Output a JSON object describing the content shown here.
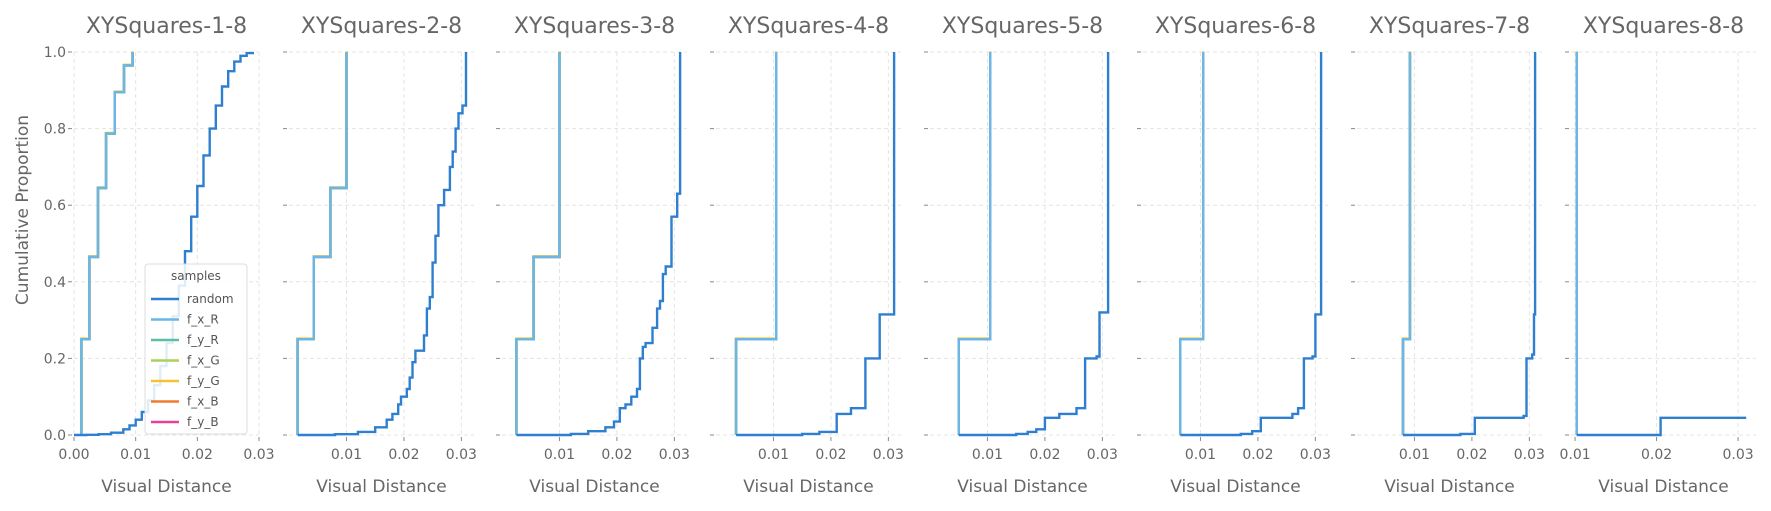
{
  "chart_data": {
    "type": "line",
    "ylabel": "Cumulative Proportion",
    "legend": {
      "title": "samples",
      "placement": "lower-right of first panel",
      "entries": [
        "random",
        "f_x_R",
        "f_y_R",
        "f_x_G",
        "f_y_G",
        "f_x_B",
        "f_y_B"
      ]
    },
    "series_colors": {
      "random": "#2f7fd0",
      "f_x_R": "#6bb6e6",
      "f_y_R": "#5bbfa8",
      "f_x_G": "#a9d15c",
      "f_y_G": "#f5c332",
      "f_x_B": "#f07b30",
      "f_y_B": "#e8409a"
    },
    "grid": true,
    "ylim": [
      0,
      1
    ],
    "y_ticks": [
      0.0,
      0.2,
      0.4,
      0.6,
      0.8,
      1.0
    ],
    "y_tick_labels": [
      "0.0",
      "0.2",
      "0.4",
      "0.6",
      "0.8",
      "1.0"
    ],
    "panels": [
      {
        "title": "XYSquares-1-8",
        "xlabel": "Visual Distance",
        "xlim": [
          0.0,
          0.03
        ],
        "x_ticks": [
          0.0,
          0.01,
          0.02,
          0.03
        ],
        "x_tick_labels": [
          "0.00",
          "0.01",
          "0.02",
          "0.03"
        ],
        "show_y_tick_labels": true,
        "has_legend": true,
        "random": [
          [
            0.0,
            0.0
          ],
          [
            0.002,
            0.0005
          ],
          [
            0.004,
            0.002
          ],
          [
            0.006,
            0.006
          ],
          [
            0.008,
            0.015
          ],
          [
            0.009,
            0.025
          ],
          [
            0.01,
            0.04
          ],
          [
            0.011,
            0.06
          ],
          [
            0.012,
            0.09
          ],
          [
            0.013,
            0.13
          ],
          [
            0.014,
            0.18
          ],
          [
            0.015,
            0.24
          ],
          [
            0.016,
            0.31
          ],
          [
            0.017,
            0.39
          ],
          [
            0.018,
            0.48
          ],
          [
            0.019,
            0.57
          ],
          [
            0.02,
            0.65
          ],
          [
            0.021,
            0.73
          ],
          [
            0.022,
            0.8
          ],
          [
            0.023,
            0.86
          ],
          [
            0.024,
            0.91
          ],
          [
            0.025,
            0.95
          ],
          [
            0.026,
            0.975
          ],
          [
            0.027,
            0.99
          ],
          [
            0.028,
            0.997
          ],
          [
            0.029,
            1.0
          ]
        ],
        "feature_steps": [
          [
            0.0012,
            0.25
          ],
          [
            0.0025,
            0.465
          ],
          [
            0.0039,
            0.645
          ],
          [
            0.0052,
            0.787
          ],
          [
            0.0066,
            0.895
          ],
          [
            0.0081,
            0.965
          ],
          [
            0.0095,
            1.0
          ]
        ],
        "feature_start_x": 0.0012
      },
      {
        "title": "XYSquares-2-8",
        "xlabel": "Visual Distance",
        "xlim": [
          0.0,
          0.0322
        ],
        "x_ticks": [
          0.01,
          0.02,
          0.03
        ],
        "x_tick_labels": [
          "0.01",
          "0.02",
          "0.03"
        ],
        "show_y_tick_labels": false,
        "has_legend": false,
        "random": [
          [
            0.0015,
            0.0
          ],
          [
            0.008,
            0.002
          ],
          [
            0.012,
            0.008
          ],
          [
            0.015,
            0.02
          ],
          [
            0.017,
            0.04
          ],
          [
            0.018,
            0.055
          ],
          [
            0.019,
            0.08
          ],
          [
            0.0195,
            0.1
          ],
          [
            0.0205,
            0.12
          ],
          [
            0.021,
            0.15
          ],
          [
            0.0215,
            0.19
          ],
          [
            0.022,
            0.22
          ],
          [
            0.0235,
            0.26
          ],
          [
            0.024,
            0.33
          ],
          [
            0.0245,
            0.36
          ],
          [
            0.025,
            0.45
          ],
          [
            0.0255,
            0.52
          ],
          [
            0.026,
            0.6
          ],
          [
            0.027,
            0.64
          ],
          [
            0.028,
            0.7
          ],
          [
            0.0285,
            0.74
          ],
          [
            0.029,
            0.8
          ],
          [
            0.0295,
            0.84
          ],
          [
            0.0302,
            0.86
          ],
          [
            0.0308,
            1.0
          ]
        ],
        "feature_steps": [
          [
            0.0015,
            0.25
          ],
          [
            0.0043,
            0.465
          ],
          [
            0.0072,
            0.645
          ],
          [
            0.01,
            1.0
          ]
        ],
        "feature_start_x": 0.0015
      },
      {
        "title": "XYSquares-3-8",
        "xlabel": "Visual Distance",
        "xlim": [
          0.0,
          0.0322
        ],
        "x_ticks": [
          0.01,
          0.02,
          0.03
        ],
        "x_tick_labels": [
          "0.01",
          "0.02",
          "0.03"
        ],
        "show_y_tick_labels": false,
        "has_legend": false,
        "random": [
          [
            0.0025,
            0.0
          ],
          [
            0.012,
            0.003
          ],
          [
            0.015,
            0.01
          ],
          [
            0.018,
            0.02
          ],
          [
            0.0195,
            0.035
          ],
          [
            0.0205,
            0.07
          ],
          [
            0.0215,
            0.08
          ],
          [
            0.0225,
            0.1
          ],
          [
            0.0235,
            0.12
          ],
          [
            0.024,
            0.2
          ],
          [
            0.0245,
            0.23
          ],
          [
            0.025,
            0.24
          ],
          [
            0.0262,
            0.28
          ],
          [
            0.027,
            0.33
          ],
          [
            0.0275,
            0.35
          ],
          [
            0.028,
            0.42
          ],
          [
            0.0285,
            0.44
          ],
          [
            0.0295,
            0.57
          ],
          [
            0.0305,
            0.63
          ],
          [
            0.031,
            1.0
          ]
        ],
        "feature_steps": [
          [
            0.0025,
            0.25
          ],
          [
            0.0055,
            0.465
          ],
          [
            0.01,
            1.0
          ]
        ],
        "feature_start_x": 0.0025
      },
      {
        "title": "XYSquares-4-8",
        "xlabel": "Visual Distance",
        "xlim": [
          0.0,
          0.0322
        ],
        "x_ticks": [
          0.01,
          0.02,
          0.03
        ],
        "x_tick_labels": [
          "0.01",
          "0.02",
          "0.03"
        ],
        "show_y_tick_labels": false,
        "has_legend": false,
        "random": [
          [
            0.0035,
            0.0
          ],
          [
            0.015,
            0.003
          ],
          [
            0.018,
            0.008
          ],
          [
            0.021,
            0.055
          ],
          [
            0.0235,
            0.07
          ],
          [
            0.026,
            0.2
          ],
          [
            0.0285,
            0.315
          ],
          [
            0.031,
            1.0
          ]
        ],
        "feature_steps": [
          [
            0.0035,
            0.25
          ],
          [
            0.0105,
            1.0
          ]
        ],
        "feature_start_x": 0.0035
      },
      {
        "title": "XYSquares-5-8",
        "xlabel": "Visual Distance",
        "xlim": [
          0.0,
          0.0322
        ],
        "x_ticks": [
          0.01,
          0.02,
          0.03
        ],
        "x_tick_labels": [
          "0.01",
          "0.02",
          "0.03"
        ],
        "show_y_tick_labels": false,
        "has_legend": false,
        "random": [
          [
            0.005,
            0.0
          ],
          [
            0.015,
            0.003
          ],
          [
            0.017,
            0.008
          ],
          [
            0.0185,
            0.015
          ],
          [
            0.02,
            0.045
          ],
          [
            0.0225,
            0.055
          ],
          [
            0.0255,
            0.07
          ],
          [
            0.027,
            0.2
          ],
          [
            0.029,
            0.205
          ],
          [
            0.0295,
            0.32
          ],
          [
            0.031,
            1.0
          ]
        ],
        "feature_steps": [
          [
            0.005,
            0.25
          ],
          [
            0.0105,
            1.0
          ]
        ],
        "feature_start_x": 0.005
      },
      {
        "title": "XYSquares-6-8",
        "xlabel": "Visual Distance",
        "xlim": [
          0.0,
          0.0322
        ],
        "x_ticks": [
          0.01,
          0.02,
          0.03
        ],
        "x_tick_labels": [
          "0.01",
          "0.02",
          "0.03"
        ],
        "show_y_tick_labels": false,
        "has_legend": false,
        "random": [
          [
            0.0065,
            0.0
          ],
          [
            0.017,
            0.003
          ],
          [
            0.019,
            0.01
          ],
          [
            0.0205,
            0.045
          ],
          [
            0.026,
            0.055
          ],
          [
            0.027,
            0.07
          ],
          [
            0.028,
            0.2
          ],
          [
            0.0295,
            0.205
          ],
          [
            0.03,
            0.315
          ],
          [
            0.031,
            1.0
          ]
        ],
        "feature_steps": [
          [
            0.0065,
            0.25
          ],
          [
            0.0105,
            1.0
          ]
        ],
        "feature_start_x": 0.0065
      },
      {
        "title": "XYSquares-7-8",
        "xlabel": "Visual Distance",
        "xlim": [
          0.0,
          0.0322
        ],
        "x_ticks": [
          0.01,
          0.02,
          0.03
        ],
        "x_tick_labels": [
          "0.01",
          "0.02",
          "0.03"
        ],
        "show_y_tick_labels": false,
        "has_legend": false,
        "random": [
          [
            0.008,
            0.0
          ],
          [
            0.018,
            0.003
          ],
          [
            0.0205,
            0.045
          ],
          [
            0.029,
            0.05
          ],
          [
            0.0295,
            0.2
          ],
          [
            0.0305,
            0.21
          ],
          [
            0.0308,
            0.315
          ],
          [
            0.031,
            1.0
          ]
        ],
        "feature_steps": [
          [
            0.008,
            0.25
          ],
          [
            0.0092,
            1.0
          ]
        ],
        "feature_start_x": 0.008
      },
      {
        "title": "XYSquares-8-8",
        "xlabel": "Visual Distance",
        "xlim": [
          0.0095,
          0.0322
        ],
        "x_ticks": [
          0.01,
          0.02,
          0.03
        ],
        "x_tick_labels": [
          "0.01",
          "0.02",
          "0.03"
        ],
        "show_y_tick_labels": false,
        "has_legend": false,
        "random": [
          [
            0.0102,
            0.0
          ],
          [
            0.0205,
            0.045
          ],
          [
            0.031,
            0.045
          ]
        ],
        "feature_steps": [
          [
            0.0102,
            1.0
          ]
        ],
        "feature_start_x": 0.0102
      }
    ]
  }
}
